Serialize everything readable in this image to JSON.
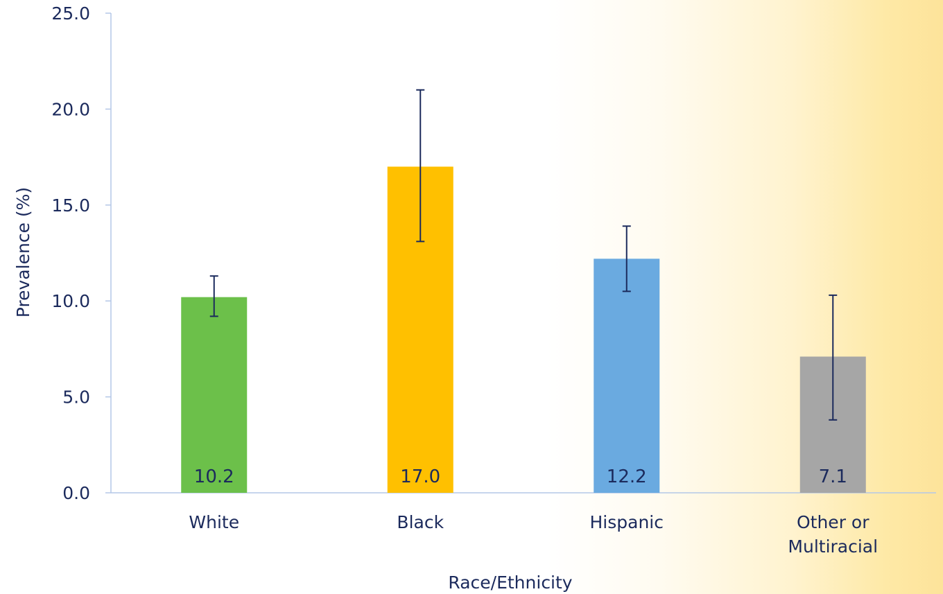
{
  "chart_data": {
    "type": "bar",
    "title": "",
    "xlabel": "Race/Ethnicity",
    "ylabel": "Prevalence (%)",
    "ylim": [
      0,
      25
    ],
    "yticks": [
      "0.0",
      "5.0",
      "10.0",
      "15.0",
      "20.0",
      "25.0"
    ],
    "grid": false,
    "categories": [
      [
        "White"
      ],
      [
        "Black"
      ],
      [
        "Hispanic"
      ],
      [
        "Other or",
        "Multiracial"
      ]
    ],
    "values": [
      10.2,
      17.0,
      12.2,
      7.1
    ],
    "value_labels": [
      "10.2",
      "17.0",
      "12.2",
      "7.1"
    ],
    "error_bars": [
      {
        "low": 9.2,
        "high": 11.3
      },
      {
        "low": 13.1,
        "high": 21.0
      },
      {
        "low": 10.5,
        "high": 13.9
      },
      {
        "low": 3.8,
        "high": 10.3
      }
    ],
    "colors": [
      "#6cc04a",
      "#ffc000",
      "#6aaae0",
      "#a6a6a6"
    ],
    "error_bar_color": "#1b2a5c",
    "axis_color": "#b4c7e7",
    "text_color": "#1b2a5c"
  }
}
